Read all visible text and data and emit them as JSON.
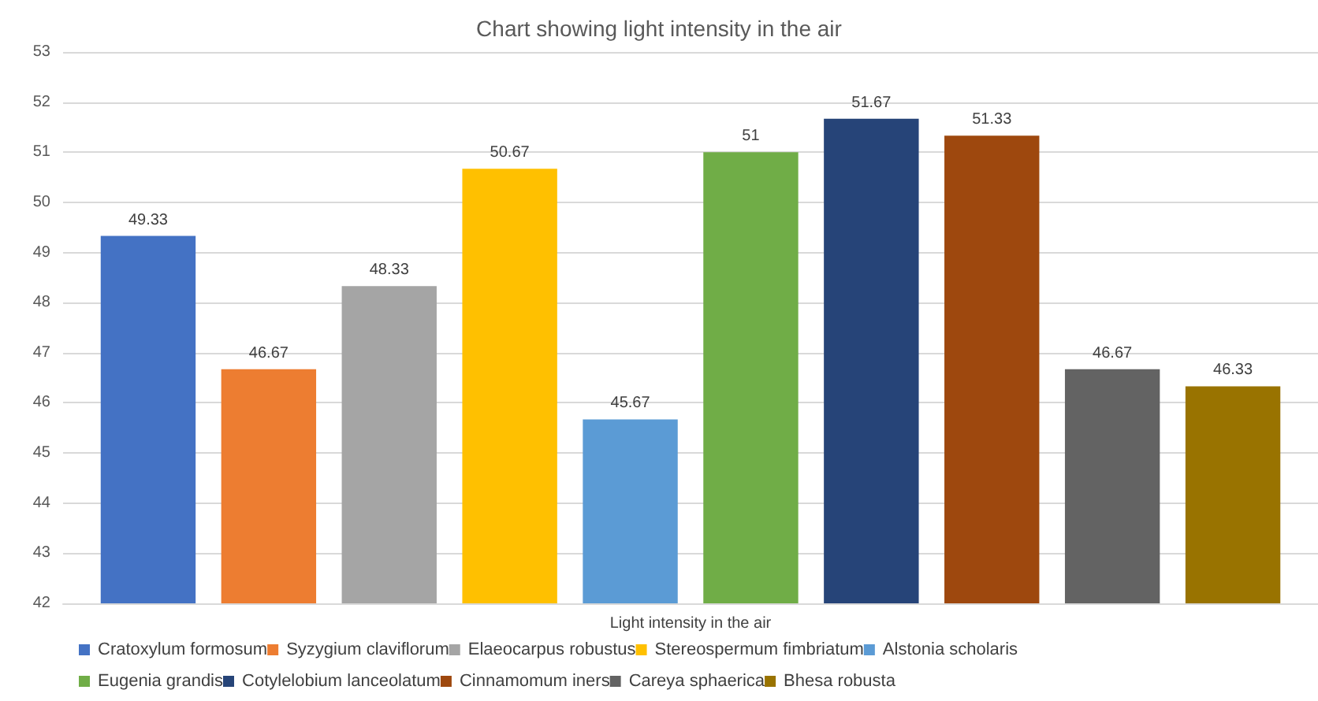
{
  "chart_data": {
    "type": "bar",
    "title": "Chart showing light intensity in the air",
    "categories": [
      "Light intensity in the air"
    ],
    "series": [
      {
        "name": "Cratoxylum formosum",
        "color": "#4472c4",
        "values": [
          49.33
        ]
      },
      {
        "name": "Syzygium claviflorum",
        "color": "#ed7d31",
        "values": [
          46.67
        ]
      },
      {
        "name": "Elaeocarpus robustus",
        "color": "#a5a5a5",
        "values": [
          48.33
        ]
      },
      {
        "name": "Stereospermum fimbriatum",
        "color": "#ffc000",
        "values": [
          50.67
        ]
      },
      {
        "name": "Alstonia scholaris",
        "color": "#5b9bd5",
        "values": [
          45.67
        ]
      },
      {
        "name": "Eugenia grandis",
        "color": "#70ad47",
        "values": [
          51
        ]
      },
      {
        "name": "Cotylelobium lanceolatum",
        "color": "#264478",
        "values": [
          51.67
        ]
      },
      {
        "name": "Cinnamomum iners",
        "color": "#9e480e",
        "values": [
          51.33
        ]
      },
      {
        "name": "Careya sphaerica",
        "color": "#636363",
        "values": [
          46.67
        ]
      },
      {
        "name": "Bhesa robusta",
        "color": "#997300",
        "values": [
          46.33
        ]
      }
    ],
    "ylim": [
      42,
      53
    ],
    "yticks": [
      42,
      43,
      44,
      45,
      46,
      47,
      48,
      49,
      50,
      51,
      52,
      53
    ],
    "grid": "y",
    "legend": "bottom",
    "data_labels": true
  }
}
